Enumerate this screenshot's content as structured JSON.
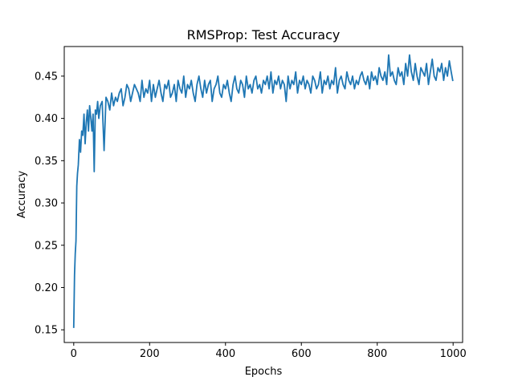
{
  "chart_data": {
    "type": "line",
    "title": "RMSProp: Test Accuracy",
    "xlabel": "Epochs",
    "ylabel": "Accuracy",
    "xlim": [
      -25,
      1025
    ],
    "ylim": [
      0.135,
      0.485
    ],
    "xticks": [
      0,
      200,
      400,
      600,
      800,
      1000
    ],
    "yticks": [
      0.15,
      0.2,
      0.25,
      0.3,
      0.35,
      0.4,
      0.45
    ],
    "ytick_labels": [
      "0.15",
      "0.20",
      "0.25",
      "0.30",
      "0.35",
      "0.40",
      "0.45"
    ],
    "grid": false,
    "series": [
      {
        "color": "#1f77b4",
        "x": [
          0,
          2,
          4,
          6,
          8,
          10,
          12,
          15,
          18,
          21,
          24,
          27,
          30,
          33,
          36,
          39,
          42,
          45,
          48,
          51,
          54,
          57,
          60,
          63,
          66,
          70,
          75,
          80,
          85,
          90,
          95,
          100,
          105,
          110,
          115,
          120,
          125,
          130,
          135,
          140,
          145,
          150,
          155,
          160,
          165,
          170,
          175,
          180,
          185,
          190,
          195,
          200,
          205,
          210,
          215,
          220,
          225,
          230,
          235,
          240,
          245,
          250,
          255,
          260,
          265,
          270,
          275,
          280,
          285,
          290,
          295,
          300,
          305,
          310,
          315,
          320,
          325,
          330,
          335,
          340,
          345,
          350,
          355,
          360,
          365,
          370,
          375,
          380,
          385,
          390,
          395,
          400,
          405,
          410,
          415,
          420,
          425,
          430,
          435,
          440,
          445,
          450,
          455,
          460,
          465,
          470,
          475,
          480,
          485,
          490,
          495,
          500,
          505,
          510,
          515,
          520,
          525,
          530,
          535,
          540,
          545,
          550,
          555,
          560,
          565,
          570,
          575,
          580,
          585,
          590,
          595,
          600,
          605,
          610,
          615,
          620,
          625,
          630,
          635,
          640,
          645,
          650,
          655,
          660,
          665,
          670,
          675,
          680,
          685,
          690,
          695,
          700,
          705,
          710,
          715,
          720,
          725,
          730,
          735,
          740,
          745,
          750,
          755,
          760,
          765,
          770,
          775,
          780,
          785,
          790,
          795,
          800,
          805,
          810,
          815,
          820,
          825,
          830,
          835,
          840,
          845,
          850,
          855,
          860,
          865,
          870,
          875,
          880,
          885,
          890,
          895,
          900,
          905,
          910,
          915,
          920,
          925,
          930,
          935,
          940,
          945,
          950,
          955,
          960,
          965,
          970,
          975,
          980,
          985,
          990,
          995,
          999
        ],
        "y": [
          0.153,
          0.215,
          0.24,
          0.255,
          0.32,
          0.335,
          0.345,
          0.375,
          0.36,
          0.385,
          0.38,
          0.405,
          0.37,
          0.395,
          0.41,
          0.385,
          0.415,
          0.4,
          0.385,
          0.405,
          0.337,
          0.41,
          0.405,
          0.42,
          0.4,
          0.415,
          0.42,
          0.362,
          0.425,
          0.42,
          0.41,
          0.43,
          0.415,
          0.425,
          0.42,
          0.43,
          0.435,
          0.415,
          0.425,
          0.44,
          0.435,
          0.42,
          0.43,
          0.44,
          0.435,
          0.43,
          0.42,
          0.445,
          0.425,
          0.435,
          0.43,
          0.445,
          0.42,
          0.44,
          0.425,
          0.435,
          0.445,
          0.43,
          0.42,
          0.44,
          0.435,
          0.445,
          0.425,
          0.43,
          0.44,
          0.42,
          0.445,
          0.435,
          0.43,
          0.45,
          0.425,
          0.44,
          0.435,
          0.445,
          0.43,
          0.42,
          0.44,
          0.45,
          0.435,
          0.425,
          0.445,
          0.43,
          0.44,
          0.445,
          0.42,
          0.435,
          0.44,
          0.45,
          0.43,
          0.425,
          0.44,
          0.435,
          0.445,
          0.43,
          0.42,
          0.44,
          0.45,
          0.435,
          0.43,
          0.445,
          0.44,
          0.425,
          0.45,
          0.435,
          0.44,
          0.43,
          0.445,
          0.45,
          0.435,
          0.44,
          0.43,
          0.445,
          0.44,
          0.45,
          0.435,
          0.455,
          0.43,
          0.445,
          0.44,
          0.45,
          0.435,
          0.445,
          0.44,
          0.42,
          0.45,
          0.435,
          0.445,
          0.44,
          0.455,
          0.43,
          0.445,
          0.44,
          0.45,
          0.435,
          0.445,
          0.44,
          0.43,
          0.45,
          0.445,
          0.435,
          0.44,
          0.455,
          0.43,
          0.445,
          0.44,
          0.45,
          0.435,
          0.445,
          0.44,
          0.46,
          0.43,
          0.445,
          0.45,
          0.44,
          0.435,
          0.455,
          0.445,
          0.44,
          0.45,
          0.435,
          0.445,
          0.44,
          0.45,
          0.455,
          0.445,
          0.44,
          0.45,
          0.435,
          0.455,
          0.445,
          0.45,
          0.44,
          0.46,
          0.45,
          0.445,
          0.455,
          0.44,
          0.475,
          0.45,
          0.455,
          0.445,
          0.44,
          0.46,
          0.45,
          0.455,
          0.44,
          0.465,
          0.45,
          0.475,
          0.455,
          0.445,
          0.465,
          0.45,
          0.44,
          0.46,
          0.455,
          0.45,
          0.465,
          0.44,
          0.455,
          0.47,
          0.45,
          0.445,
          0.46,
          0.455,
          0.465,
          0.445,
          0.46,
          0.45,
          0.468,
          0.455,
          0.445
        ]
      }
    ]
  }
}
